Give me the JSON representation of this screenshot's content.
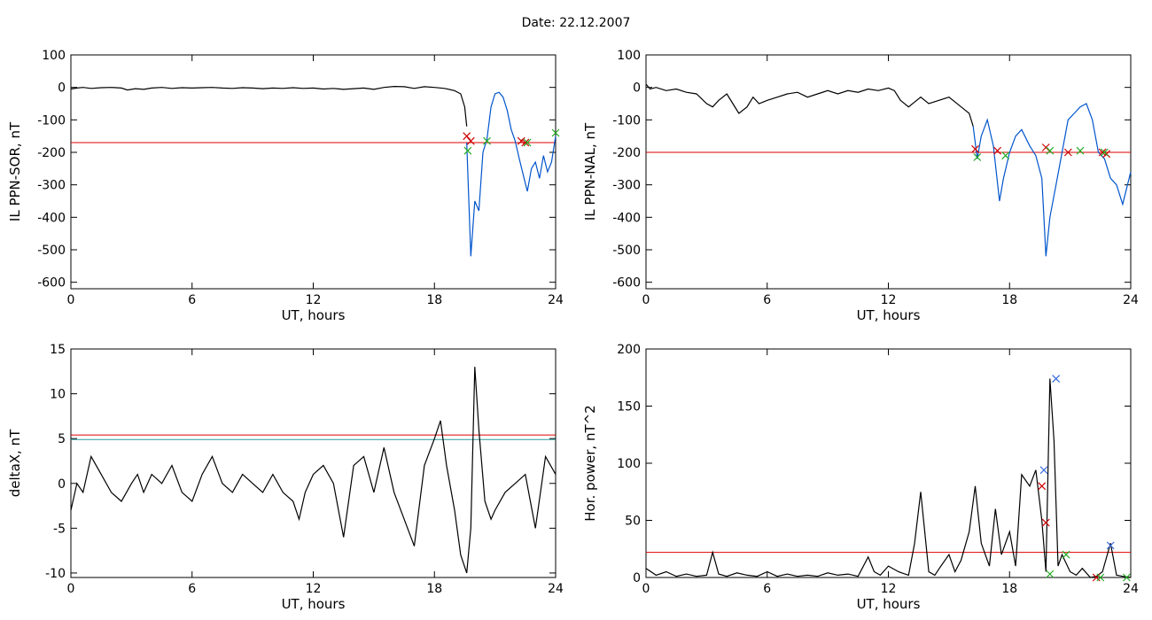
{
  "page": {
    "title": "Date:  22.12.2007"
  },
  "chart_data": [
    {
      "type": "line",
      "xlabel": "UT, hours",
      "ylabel": "IL PPN-SOR, nT",
      "xlim": [
        0,
        24
      ],
      "ylim": [
        -620,
        100
      ],
      "xticks": [
        0,
        6,
        12,
        18,
        24
      ],
      "yticks": [
        100,
        0,
        -100,
        -200,
        -300,
        -400,
        -500,
        -600
      ],
      "threshold": -170,
      "series": [
        {
          "color": "#000000",
          "x": [
            0,
            0.3,
            0.6,
            1,
            1.5,
            2,
            2.5,
            2.8,
            3.2,
            3.6,
            4,
            4.5,
            5,
            5.5,
            6,
            6.5,
            7,
            7.5,
            8,
            8.5,
            9,
            9.5,
            10,
            10.5,
            11,
            11.5,
            12,
            12.5,
            13,
            13.5,
            14,
            14.5,
            15,
            15.5,
            16,
            16.5,
            17,
            17.5,
            18,
            18.5,
            19,
            19.3,
            19.5,
            19.6
          ],
          "y": [
            -5,
            -2,
            0,
            -3,
            -1,
            0,
            -2,
            -8,
            -4,
            -6,
            -2,
            0,
            -3,
            -1,
            -2,
            -1,
            0,
            -2,
            -3,
            -1,
            -2,
            -4,
            -2,
            -3,
            -1,
            -3,
            -2,
            -5,
            -3,
            -6,
            -4,
            -2,
            -6,
            0,
            3,
            2,
            -3,
            2,
            0,
            -3,
            -10,
            -20,
            -60,
            -120
          ]
        },
        {
          "color": "#0055cc",
          "x": [
            19.6,
            19.8,
            20,
            20.2,
            20.4,
            20.6,
            20.8,
            21,
            21.2,
            21.4,
            21.6,
            21.8,
            22,
            22.2,
            22.4,
            22.6,
            22.8,
            23,
            23.2,
            23.4,
            23.6,
            23.8,
            24
          ],
          "y": [
            -170,
            -520,
            -350,
            -380,
            -200,
            -160,
            -60,
            -20,
            -15,
            -30,
            -70,
            -130,
            -165,
            -220,
            -270,
            -320,
            -250,
            -230,
            -280,
            -210,
            -260,
            -230,
            -150
          ]
        }
      ],
      "markers": [
        {
          "color": "#cc0000",
          "x": [
            19.6,
            19.8,
            22.3,
            22.5
          ],
          "y": [
            -150,
            -165,
            -165,
            -170
          ]
        },
        {
          "color": "#22aa22",
          "x": [
            19.65,
            20.6,
            22.6,
            24
          ],
          "y": [
            -195,
            -165,
            -170,
            -140
          ]
        }
      ]
    },
    {
      "type": "line",
      "xlabel": "UT, hours",
      "ylabel": "IL PPN-NAL, nT",
      "xlim": [
        0,
        24
      ],
      "ylim": [
        -620,
        100
      ],
      "xticks": [
        0,
        6,
        12,
        18,
        24
      ],
      "yticks": [
        100,
        0,
        -100,
        -200,
        -300,
        -400,
        -500,
        -600
      ],
      "threshold": -200,
      "series": [
        {
          "color": "#000000",
          "x": [
            0,
            0.2,
            0.5,
            1,
            1.5,
            2,
            2.5,
            3,
            3.3,
            3.6,
            4,
            4.3,
            4.6,
            5,
            5.3,
            5.6,
            6,
            6.5,
            7,
            7.5,
            8,
            8.5,
            9,
            9.5,
            10,
            10.5,
            11,
            11.5,
            12,
            12.3,
            12.6,
            13,
            13.3,
            13.6,
            14,
            14.5,
            15,
            15.5,
            15.8,
            16,
            16.2
          ],
          "y": [
            10,
            -5,
            0,
            -10,
            -5,
            -15,
            -20,
            -50,
            -60,
            -40,
            -20,
            -50,
            -80,
            -60,
            -30,
            -50,
            -40,
            -30,
            -20,
            -15,
            -30,
            -20,
            -10,
            -20,
            -10,
            -15,
            -5,
            -10,
            -2,
            -10,
            -40,
            -60,
            -45,
            -30,
            -50,
            -40,
            -30,
            -55,
            -70,
            -80,
            -120
          ]
        },
        {
          "color": "#0055cc",
          "x": [
            16.2,
            16.4,
            16.6,
            16.9,
            17.2,
            17.5,
            17.7,
            18,
            18.3,
            18.6,
            19,
            19.3,
            19.6,
            19.8,
            20,
            20.3,
            20.6,
            20.9,
            21.2,
            21.5,
            21.8,
            22.1,
            22.4,
            22.7,
            23,
            23.3,
            23.6,
            24
          ],
          "y": [
            -120,
            -220,
            -150,
            -100,
            -180,
            -350,
            -280,
            -200,
            -150,
            -130,
            -180,
            -210,
            -280,
            -520,
            -400,
            -300,
            -200,
            -100,
            -80,
            -60,
            -50,
            -100,
            -200,
            -220,
            -280,
            -300,
            -360,
            -260
          ]
        }
      ],
      "markers": [
        {
          "color": "#cc0000",
          "x": [
            16.3,
            17.4,
            19.8,
            20.9,
            22.6,
            22.8
          ],
          "y": [
            -190,
            -195,
            -185,
            -200,
            -200,
            -205
          ]
        },
        {
          "color": "#22aa22",
          "x": [
            16.4,
            17.8,
            20.0,
            21.5,
            22.7
          ],
          "y": [
            -215,
            -210,
            -195,
            -195,
            -200
          ]
        }
      ]
    },
    {
      "type": "line",
      "xlabel": "UT, hours",
      "ylabel": "deltaX, nT",
      "xlim": [
        0,
        24
      ],
      "ylim": [
        -10.5,
        15
      ],
      "xticks": [
        0,
        6,
        12,
        18,
        24
      ],
      "yticks": [
        15,
        10,
        5,
        0,
        -5,
        -10
      ],
      "threshold": 5.4,
      "threshold2": 4.9,
      "series": [
        {
          "color": "#000000",
          "x": [
            0,
            0.3,
            0.6,
            1,
            1.5,
            2,
            2.5,
            3,
            3.3,
            3.6,
            4,
            4.5,
            5,
            5.5,
            6,
            6.5,
            7,
            7.5,
            8,
            8.5,
            9,
            9.5,
            10,
            10.5,
            11,
            11.3,
            11.6,
            12,
            12.5,
            13,
            13.5,
            14,
            14.5,
            15,
            15.5,
            16,
            16.5,
            17,
            17.5,
            18,
            18.3,
            18.6,
            19,
            19.3,
            19.6,
            19.8,
            20,
            20.2,
            20.5,
            20.8,
            21,
            21.5,
            22,
            22.5,
            23,
            23.5,
            24
          ],
          "y": [
            -3,
            0,
            -1,
            3,
            1,
            -1,
            -2,
            0,
            1,
            -1,
            1,
            0,
            2,
            -1,
            -2,
            1,
            3,
            0,
            -1,
            1,
            0,
            -1,
            1,
            -1,
            -2,
            -4,
            -1,
            1,
            2,
            0,
            -6,
            2,
            3,
            -1,
            4,
            -1,
            -4,
            -7,
            2,
            5,
            7,
            2,
            -3,
            -8,
            -10,
            -5,
            13,
            6,
            -2,
            -4,
            -3,
            -1,
            0,
            1,
            -5,
            3,
            1
          ]
        }
      ],
      "markers": []
    },
    {
      "type": "line",
      "xlabel": "UT, hours",
      "ylabel": "Hor. power, nT^2",
      "xlim": [
        0,
        24
      ],
      "ylim": [
        0,
        200
      ],
      "xticks": [
        0,
        6,
        12,
        18,
        24
      ],
      "yticks": [
        200,
        150,
        100,
        50,
        0
      ],
      "threshold": 22,
      "series": [
        {
          "color": "#000000",
          "x": [
            0,
            0.5,
            1,
            1.5,
            2,
            2.5,
            3,
            3.3,
            3.6,
            4,
            4.5,
            5,
            5.5,
            6,
            6.5,
            7,
            7.5,
            8,
            8.5,
            9,
            9.5,
            10,
            10.5,
            11,
            11.3,
            11.6,
            12,
            12.5,
            13,
            13.3,
            13.6,
            14,
            14.3,
            14.6,
            15,
            15.3,
            15.6,
            16,
            16.3,
            16.6,
            17,
            17.3,
            17.6,
            18,
            18.3,
            18.6,
            19,
            19.3,
            19.6,
            19.8,
            20,
            20.2,
            20.4,
            20.6,
            21,
            21.3,
            21.6,
            22,
            22.3,
            22.6,
            23,
            23.3,
            23.6,
            24
          ],
          "y": [
            8,
            2,
            5,
            1,
            3,
            1,
            2,
            22,
            3,
            1,
            4,
            2,
            1,
            5,
            1,
            3,
            1,
            2,
            1,
            4,
            2,
            3,
            1,
            18,
            5,
            2,
            10,
            5,
            2,
            30,
            75,
            5,
            2,
            10,
            20,
            5,
            15,
            40,
            80,
            30,
            10,
            60,
            20,
            40,
            10,
            90,
            80,
            94,
            50,
            5,
            174,
            120,
            10,
            20,
            5,
            2,
            8,
            0,
            1,
            5,
            30,
            2,
            1,
            0
          ]
        }
      ],
      "markers": [
        {
          "color": "#cc0000",
          "x": [
            19.6,
            19.8,
            22.3
          ],
          "y": [
            80,
            48,
            0
          ]
        },
        {
          "color": "#3366dd",
          "x": [
            19.7,
            20.3,
            23.0
          ],
          "y": [
            94,
            174,
            28
          ]
        },
        {
          "color": "#22aa22",
          "x": [
            20.0,
            20.8,
            22.5,
            23.8
          ],
          "y": [
            3,
            20,
            0,
            0
          ]
        }
      ]
    }
  ]
}
